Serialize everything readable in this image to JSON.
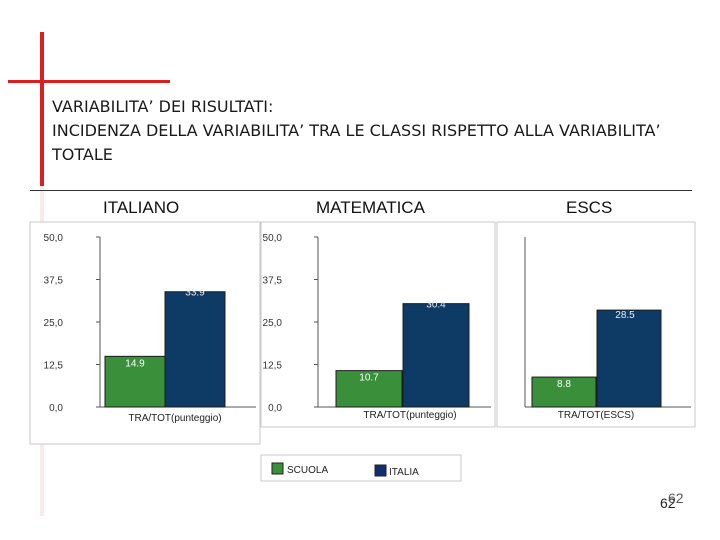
{
  "slide": {
    "title_lines": [
      "VARIABILITA’ DEI RISULTATI:",
      "INCIDENZA DELLA VARIABILITA’ TRA LE CLASSI  RISPETTO ALLA VARIABILITA’",
      "TOTALE"
    ],
    "page_number": "62",
    "page_number_overlay": "62"
  },
  "chart_data": [
    {
      "type": "bar",
      "title": "ITALIANO",
      "categories": [
        "TRA/TOT(punteggio)"
      ],
      "series": [
        {
          "name": "SCUOLA",
          "values": [
            14.9
          ]
        },
        {
          "name": "ITALIA",
          "values": [
            33.9
          ]
        }
      ],
      "data_labels": [
        "14.9",
        "33.9"
      ],
      "ylim": [
        0,
        50
      ],
      "y_ticks": [
        0,
        12.5,
        25,
        37.5,
        50
      ],
      "y_tick_labels": [
        "0,0",
        "12,5",
        "25,0",
        "37,5",
        "50,0"
      ],
      "grid": false
    },
    {
      "type": "bar",
      "title": "MATEMATICA",
      "categories": [
        "TRA/TOT(punteggio)"
      ],
      "series": [
        {
          "name": "SCUOLA",
          "values": [
            10.7
          ]
        },
        {
          "name": "ITALIA",
          "values": [
            30.4
          ]
        }
      ],
      "data_labels": [
        "10.7",
        "30.4"
      ],
      "ylim": [
        0,
        50
      ],
      "y_ticks": [
        0,
        12.5,
        25,
        37.5,
        50
      ],
      "y_tick_labels": [
        "0,0",
        "12,5",
        "25,0",
        "37,5",
        "50,0"
      ],
      "grid": false
    },
    {
      "type": "bar",
      "title": "ESCS",
      "categories": [
        "TRA/TOT(ESCS)"
      ],
      "series": [
        {
          "name": "SCUOLA",
          "values": [
            8.8
          ]
        },
        {
          "name": "ITALIA",
          "values": [
            28.5
          ]
        }
      ],
      "data_labels": [
        "8.8",
        "28.5"
      ],
      "ylim": [
        0,
        50
      ],
      "y_ticks": [],
      "y_tick_labels": [],
      "grid": false
    }
  ],
  "legend": {
    "position": "bottom-center",
    "items": [
      {
        "label": "SCUOLA",
        "color": "#3a8f3a"
      },
      {
        "label": "ITALIA",
        "color": "#112d6b"
      }
    ]
  },
  "colors": {
    "scuola": "#3a8f3a",
    "italia": "#0e3a66",
    "accent": "#d9201e"
  }
}
